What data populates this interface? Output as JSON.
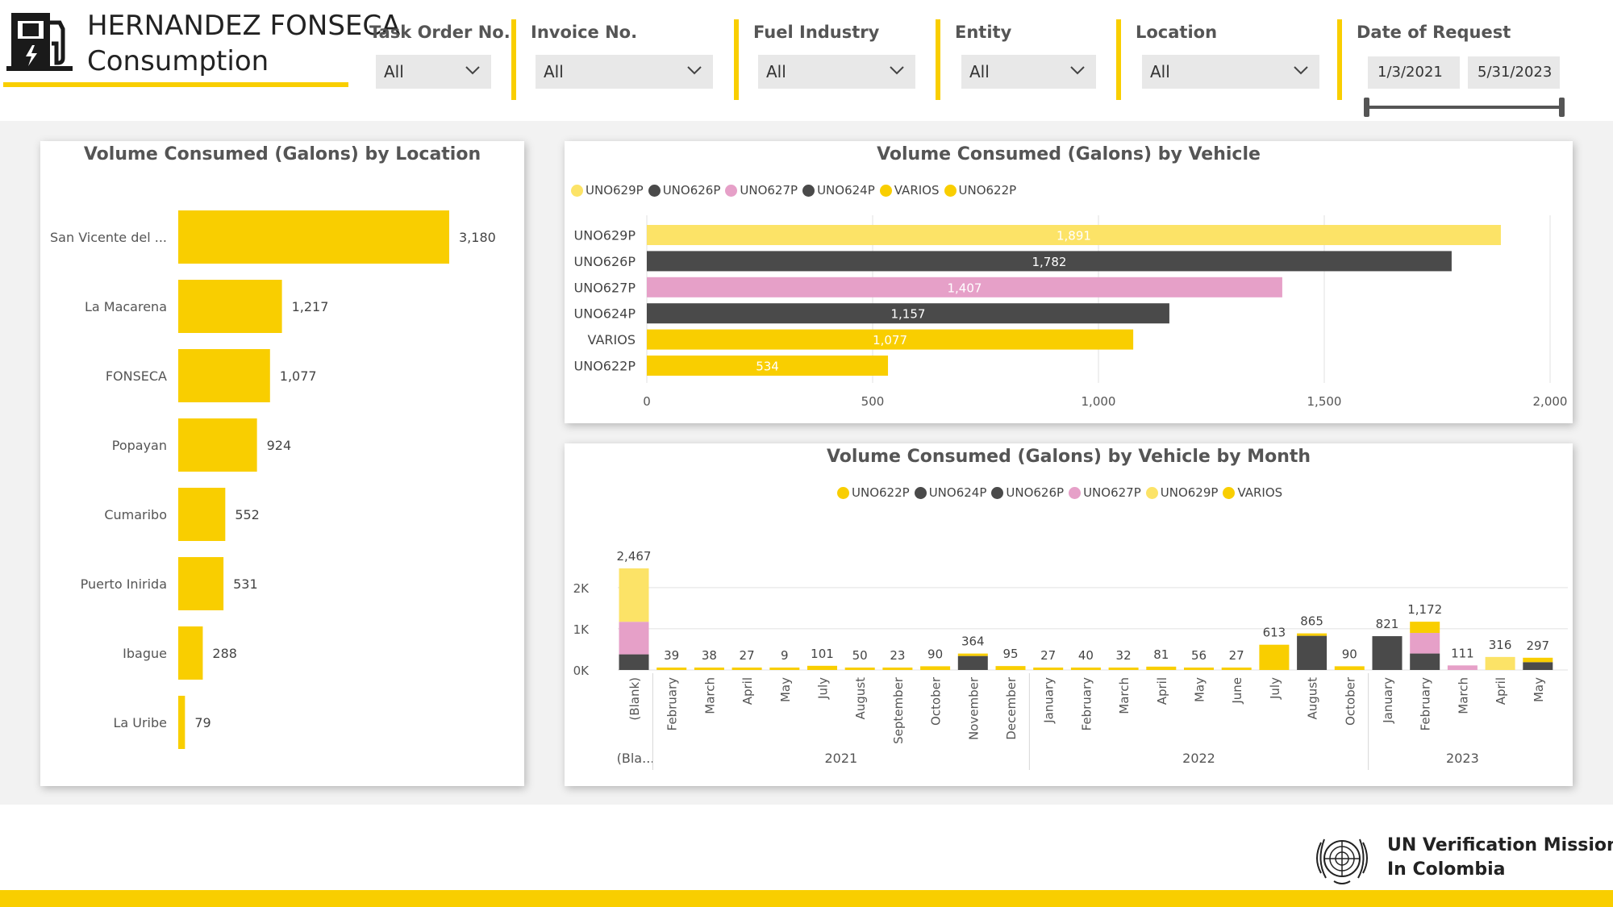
{
  "brand": {
    "title": "HERNANDEZ FONSECA",
    "subtitle": "Consumption",
    "icon": "fuel-pump-icon"
  },
  "colors": {
    "accent": "#F9CE00",
    "UNO629P": "#FCE367",
    "UNO626P": "#4A4A4A",
    "UNO627P": "#E6A0C8",
    "UNO624P": "#4A4A4A",
    "VARIOS": "#F9CE00",
    "UNO622P": "#F9CE00"
  },
  "filters": [
    {
      "label": "Task Order No.",
      "value": "All"
    },
    {
      "label": "Invoice No.",
      "value": "All"
    },
    {
      "label": "Fuel Industry",
      "value": "All"
    },
    {
      "label": "Entity",
      "value": "All"
    },
    {
      "label": "Location",
      "value": "All"
    }
  ],
  "date_filter": {
    "label": "Date of Request",
    "start": "1/3/2021",
    "end": "5/31/2023"
  },
  "chart_data": [
    {
      "type": "bar",
      "orientation": "horizontal",
      "title": "Volume Consumed (Galons) by Location",
      "categories": [
        "San Vicente del ...",
        "La Macarena",
        "FONSECA",
        "Popayan",
        "Cumaribo",
        "Puerto Inirida",
        "Ibague",
        "La Uribe"
      ],
      "values": [
        3180,
        1217,
        1077,
        924,
        552,
        531,
        288,
        79
      ],
      "value_labels": [
        "3,180",
        "1,217",
        "1,077",
        "924",
        "552",
        "531",
        "288",
        "79"
      ],
      "xlim": [
        0,
        3180
      ]
    },
    {
      "type": "bar",
      "orientation": "horizontal",
      "title": "Volume Consumed (Galons) by Vehicle",
      "legend": [
        "UNO629P",
        "UNO626P",
        "UNO627P",
        "UNO624P",
        "VARIOS",
        "UNO622P"
      ],
      "categories": [
        "UNO629P",
        "UNO626P",
        "UNO627P",
        "UNO624P",
        "VARIOS",
        "UNO622P"
      ],
      "values": [
        1891,
        1782,
        1407,
        1157,
        1077,
        534
      ],
      "value_labels": [
        "1,891",
        "1,782",
        "1,407",
        "1,157",
        "1,077",
        "534"
      ],
      "xlim": [
        0,
        2000
      ],
      "xticks": [
        0,
        500,
        1000,
        1500,
        2000
      ],
      "xtick_labels": [
        "0",
        "500",
        "1,000",
        "1,500",
        "2,000"
      ]
    },
    {
      "type": "bar",
      "stacked": true,
      "title": "Volume Consumed (Galons) by Vehicle by Month",
      "legend": [
        "UNO622P",
        "UNO624P",
        "UNO626P",
        "UNO627P",
        "UNO629P",
        "VARIOS"
      ],
      "categories": [
        "(Blank)",
        "February",
        "March",
        "April",
        "May",
        "July",
        "August",
        "September",
        "October",
        "November",
        "December",
        "January",
        "February",
        "March",
        "April",
        "May",
        "June",
        "July",
        "August",
        "October",
        "January",
        "February",
        "March",
        "April",
        "May"
      ],
      "groups": [
        {
          "label": "(Bla...",
          "start": 0,
          "end": 0
        },
        {
          "label": "2021",
          "start": 1,
          "end": 10
        },
        {
          "label": "2022",
          "start": 11,
          "end": 19
        },
        {
          "label": "2023",
          "start": 20,
          "end": 24
        }
      ],
      "totals": [
        2467,
        39,
        38,
        27,
        9,
        101,
        50,
        23,
        90,
        364,
        95,
        27,
        40,
        32,
        81,
        56,
        27,
        613,
        865,
        90,
        821,
        1172,
        111,
        316,
        297
      ],
      "total_labels": [
        "2,467",
        "39",
        "38",
        "27",
        "9",
        "101",
        "50",
        "23",
        "90",
        "364",
        "95",
        "27",
        "40",
        "32",
        "81",
        "56",
        "27",
        "613",
        "865",
        "90",
        "821",
        "1,172",
        "111",
        "316",
        "297"
      ],
      "series": [
        {
          "name": "UNO624P",
          "color": "#4A4A4A",
          "values": [
            380,
            0,
            0,
            0,
            0,
            0,
            0,
            0,
            0,
            340,
            0,
            0,
            0,
            0,
            0,
            0,
            0,
            0,
            830,
            0,
            821,
            400,
            0,
            0,
            190
          ]
        },
        {
          "name": "UNO627P",
          "color": "#E6A0C8",
          "values": [
            790,
            0,
            0,
            0,
            0,
            0,
            0,
            0,
            0,
            0,
            0,
            0,
            0,
            0,
            0,
            0,
            0,
            0,
            0,
            0,
            0,
            500,
            111,
            0,
            0
          ]
        },
        {
          "name": "UNO629P",
          "color": "#FCE367",
          "values": [
            1297,
            0,
            0,
            0,
            0,
            0,
            0,
            0,
            0,
            0,
            0,
            0,
            0,
            0,
            0,
            0,
            0,
            0,
            0,
            0,
            0,
            0,
            0,
            316,
            0
          ]
        },
        {
          "name": "VARIOS",
          "color": "#F9CE00",
          "values": [
            0,
            39,
            38,
            27,
            9,
            101,
            50,
            23,
            90,
            24,
            95,
            27,
            40,
            32,
            81,
            56,
            27,
            613,
            35,
            90,
            0,
            272,
            0,
            0,
            107
          ]
        }
      ],
      "ylim": [
        0,
        2467
      ],
      "yticks": [
        0,
        1000,
        2000
      ],
      "ytick_labels": [
        "0K",
        "1K",
        "2K"
      ]
    }
  ],
  "footer": {
    "org_line1": "UN Verification Mission",
    "org_line2": "In Colombia",
    "emblem": "un-emblem-icon"
  }
}
